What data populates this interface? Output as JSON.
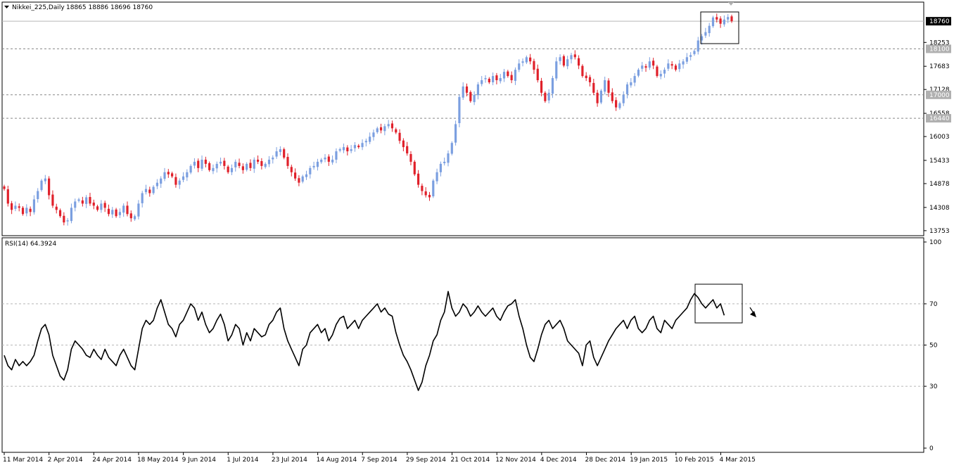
{
  "colors": {
    "bull": "#7b9fe0",
    "bear": "#e0202a",
    "rsi_line": "#000000",
    "grid": "#b8b8b8",
    "level_tag_bg": "#b0b0b0",
    "level_tag_text": "#ffffff",
    "price_tag_bg": "#000000",
    "price_tag_text": "#ffffff"
  },
  "main": {
    "symbol_label": "Nikkei_225,Daily",
    "ohlc_label": "18865 18886 18696 18760",
    "menu_icon": "triangle-down-icon"
  },
  "rsi": {
    "label": "RSI(14) 64.3924",
    "value": 64.3924,
    "period": 14,
    "levels": [
      30,
      50,
      70
    ],
    "axis_ticks": [
      "100",
      "70",
      "50",
      "30",
      "0"
    ],
    "range": [
      0,
      100
    ]
  },
  "price_axis": {
    "ticks": [
      "18253",
      "17683",
      "17128",
      "16558",
      "16003",
      "15433",
      "14878",
      "14308",
      "13753"
    ],
    "current_price": "18760",
    "level_tags": [
      "18100",
      "17000",
      "16440"
    ],
    "range": [
      13650,
      19200
    ]
  },
  "x_axis": {
    "labels": [
      "11 Mar 2014",
      "2 Apr 2014",
      "24 Apr 2014",
      "18 May 2014",
      "9 Jun 2014",
      "1 Jul 2014",
      "23 Jul 2014",
      "14 Aug 2014",
      "7 Sep 2014",
      "29 Sep 2014",
      "21 Oct 2014",
      "12 Nov 2014",
      "4 Dec 2014",
      "28 Dec 2014",
      "19 Jan 2015",
      "10 Feb 2015",
      "4 Mar 2015"
    ]
  },
  "annotations": {
    "price_box_label": "highlight-box-price",
    "rsi_box_label": "highlight-box-rsi",
    "arrow": "arrow-down-right-icon"
  },
  "chart_data": [
    {
      "type": "line",
      "title": "Nikkei_225,Daily",
      "series": [
        {
          "name": "Nikkei_225",
          "values": [
            14750,
            14400,
            14250,
            14350,
            14300,
            14150,
            14300,
            14200,
            14500,
            14700,
            14950,
            15000,
            14600,
            14350,
            14250,
            14100,
            13950,
            14000,
            14300,
            14450,
            14500,
            14400,
            14550,
            14400,
            14350,
            14250,
            14400,
            14300,
            14150,
            14250,
            14100,
            14200,
            14350,
            14150,
            14050,
            14100,
            14400,
            14650,
            14750,
            14650,
            14800,
            14900,
            15000,
            15150,
            15100,
            15050,
            14850,
            14950,
            15050,
            15150,
            15300,
            15400,
            15250,
            15450,
            15350,
            15200,
            15250,
            15350,
            15400,
            15300,
            15150,
            15250,
            15400,
            15300,
            15200,
            15350,
            15250,
            15450,
            15400,
            15300,
            15350,
            15450,
            15500,
            15650,
            15700,
            15500,
            15300,
            15150,
            15000,
            14900,
            15050,
            15100,
            15250,
            15300,
            15400,
            15450,
            15500,
            15400,
            15450,
            15650,
            15700,
            15750,
            15650,
            15700,
            15800,
            15750,
            15850,
            15900,
            16000,
            16100,
            16200,
            16150,
            16250,
            16300,
            16200,
            16100,
            15900,
            15750,
            15600,
            15400,
            15100,
            14850,
            14700,
            14600,
            14550,
            14950,
            15150,
            15350,
            15400,
            15600,
            15850,
            16300,
            16950,
            17200,
            17050,
            16850,
            17000,
            17250,
            17350,
            17400,
            17300,
            17450,
            17350,
            17400,
            17550,
            17450,
            17350,
            17600,
            17750,
            17800,
            17900,
            17800,
            17600,
            17350,
            17050,
            16850,
            17050,
            17400,
            17800,
            17900,
            17700,
            17850,
            17950,
            17900,
            17700,
            17450,
            17400,
            17300,
            17050,
            16800,
            17100,
            17350,
            17050,
            16850,
            16700,
            16800,
            17000,
            17250,
            17300,
            17450,
            17600,
            17700,
            17650,
            17800,
            17700,
            17450,
            17500,
            17600,
            17750,
            17700,
            17600,
            17750,
            17800,
            17900,
            17950,
            18050,
            18300,
            18400,
            18500,
            18650,
            18850,
            18800,
            18700,
            18800,
            18860,
            18760
          ]
        }
      ],
      "x_labels": [
        "11 Mar 2014",
        "2 Apr 2014",
        "24 Apr 2014",
        "18 May 2014",
        "9 Jun 2014",
        "1 Jul 2014",
        "23 Jul 2014",
        "14 Aug 2014",
        "7 Sep 2014",
        "29 Sep 2014",
        "21 Oct 2014",
        "12 Nov 2014",
        "4 Dec 2014",
        "28 Dec 2014",
        "19 Jan 2015",
        "10 Feb 2015",
        "4 Mar 2015"
      ],
      "last_ohlc": {
        "open": 18865,
        "high": 18886,
        "low": 18696,
        "close": 18760
      },
      "horizontal_levels": [
        18100,
        17000,
        16440
      ],
      "ylim": [
        13650,
        19200
      ]
    },
    {
      "type": "line",
      "title": "RSI(14) 64.3924",
      "series": [
        {
          "name": "RSI(14)",
          "values": [
            45,
            40,
            38,
            43,
            40,
            42,
            40,
            42,
            45,
            52,
            58,
            60,
            55,
            45,
            40,
            35,
            33,
            38,
            48,
            52,
            50,
            48,
            45,
            44,
            48,
            45,
            43,
            48,
            44,
            42,
            40,
            45,
            48,
            44,
            40,
            38,
            48,
            58,
            62,
            60,
            62,
            68,
            72,
            66,
            60,
            58,
            54,
            60,
            62,
            66,
            70,
            68,
            62,
            66,
            60,
            56,
            58,
            62,
            65,
            60,
            52,
            55,
            60,
            58,
            50,
            56,
            52,
            58,
            56,
            54,
            55,
            60,
            62,
            66,
            68,
            58,
            52,
            48,
            44,
            40,
            48,
            50,
            56,
            58,
            60,
            56,
            58,
            52,
            55,
            60,
            63,
            64,
            58,
            60,
            62,
            58,
            62,
            64,
            66,
            68,
            70,
            66,
            68,
            65,
            64,
            56,
            50,
            45,
            42,
            38,
            33,
            28,
            32,
            40,
            45,
            52,
            55,
            62,
            66,
            76,
            68,
            64,
            66,
            70,
            68,
            64,
            66,
            69,
            66,
            64,
            66,
            68,
            64,
            62,
            66,
            69,
            70,
            72,
            64,
            58,
            50,
            44,
            42,
            48,
            55,
            60,
            62,
            58,
            60,
            62,
            58,
            52,
            50,
            48,
            46,
            40,
            50,
            52,
            44,
            40,
            44,
            48,
            52,
            55,
            58,
            60,
            62,
            58,
            62,
            64,
            58,
            56,
            58,
            62,
            64,
            58,
            56,
            62,
            60,
            58,
            62,
            64,
            66,
            68,
            72,
            75,
            73,
            70,
            68,
            70,
            72,
            68,
            70,
            64.39
          ]
        }
      ],
      "levels": [
        30,
        50,
        70
      ],
      "ylim": [
        0,
        100
      ]
    }
  ]
}
